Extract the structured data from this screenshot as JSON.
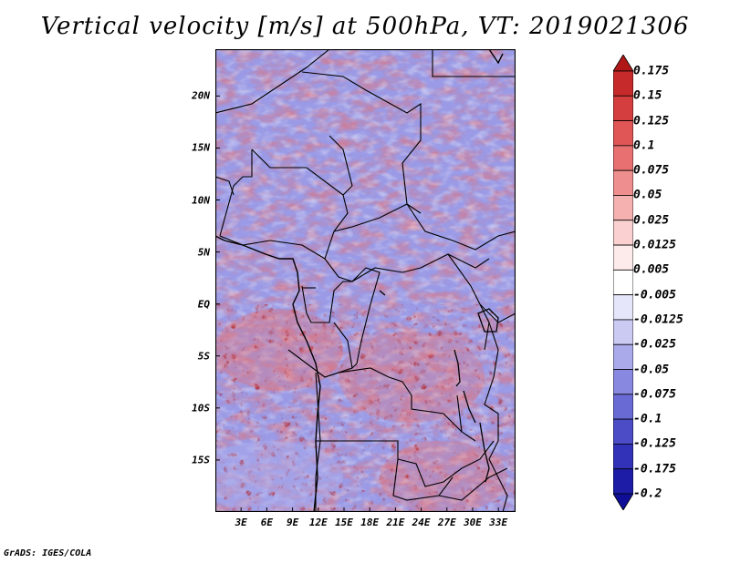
{
  "title": "Vertical velocity [m/s] at 500hPa, VT: 2019021306",
  "credit": "GrADS: IGES/COLA",
  "map": {
    "lat_labels": [
      "20N",
      "15N",
      "10N",
      "5N",
      "EQ",
      "5S",
      "10S",
      "15S"
    ],
    "lat_values": [
      20,
      15,
      10,
      5,
      0,
      -5,
      -10,
      -15
    ],
    "lon_labels": [
      "3E",
      "6E",
      "9E",
      "12E",
      "15E",
      "18E",
      "21E",
      "24E",
      "27E",
      "30E",
      "33E"
    ],
    "lon_values": [
      3,
      6,
      9,
      12,
      15,
      18,
      21,
      24,
      27,
      30,
      33
    ],
    "lon_range": [
      0,
      35
    ],
    "lat_range": [
      -20,
      24.5
    ]
  },
  "colorbar": {
    "levels": [
      "0.175",
      "0.15",
      "0.125",
      "0.1",
      "0.075",
      "0.05",
      "0.025",
      "0.0125",
      "0.005",
      "-0.005",
      "-0.0125",
      "-0.025",
      "-0.05",
      "-0.075",
      "-0.1",
      "-0.125",
      "-0.175",
      "-0.2"
    ],
    "colors": [
      "#b01818",
      "#c62a2a",
      "#d43e3e",
      "#e05656",
      "#e87070",
      "#ef8e8e",
      "#f5b0b0",
      "#fad0d0",
      "#fdeaea",
      "#ffffff",
      "#e6e6fb",
      "#cacaf3",
      "#aaaaeb",
      "#8888e0",
      "#6a6ad4",
      "#4c4cc6",
      "#3232b8",
      "#1c1ca6",
      "#0e0e96"
    ]
  }
}
